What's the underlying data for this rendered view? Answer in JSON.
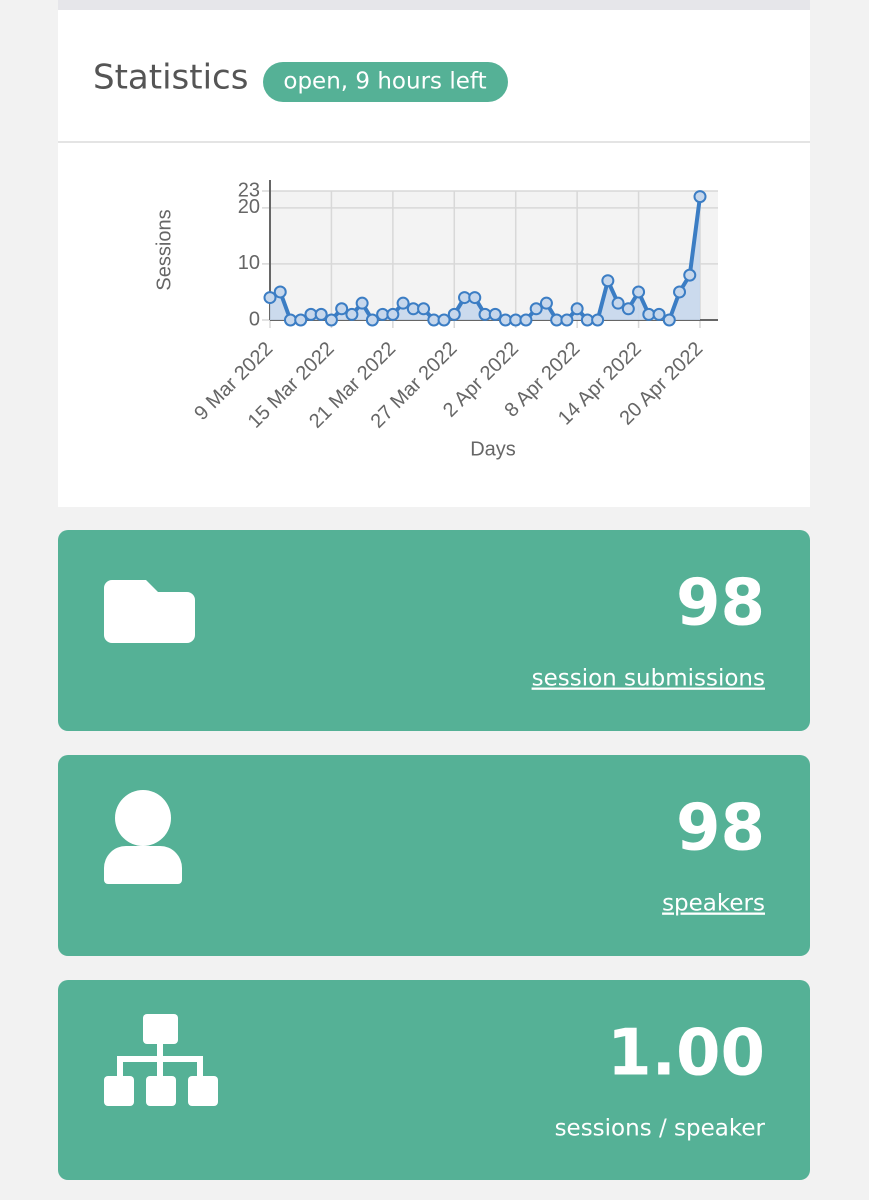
{
  "header": {
    "title": "Statistics",
    "badge": "open, 9 hours left"
  },
  "chart_data": {
    "type": "line",
    "y_label": "Sessions",
    "x_label": "Days",
    "categories": [
      "9 Mar 2022",
      null,
      null,
      null,
      null,
      null,
      "15 Mar 2022",
      null,
      null,
      null,
      null,
      null,
      "21 Mar 2022",
      null,
      null,
      null,
      null,
      null,
      "27 Mar 2022",
      null,
      null,
      null,
      null,
      null,
      "2 Apr 2022",
      null,
      null,
      null,
      null,
      null,
      "8 Apr 2022",
      null,
      null,
      null,
      null,
      null,
      "14 Apr 2022",
      null,
      null,
      null,
      null,
      null,
      "20 Apr 2022"
    ],
    "values": [
      4,
      5,
      0,
      0,
      1,
      1,
      0,
      2,
      1,
      3,
      0,
      1,
      1,
      3,
      2,
      2,
      0,
      0,
      1,
      4,
      4,
      1,
      1,
      0,
      0,
      0,
      2,
      3,
      0,
      0,
      2,
      0,
      0,
      7,
      3,
      2,
      5,
      1,
      1,
      0,
      5,
      8,
      22
    ],
    "color": "#3b7dc4",
    "ylim": [
      0,
      23
    ],
    "yticks": [
      0,
      10,
      20,
      23
    ],
    "grid": true
  },
  "cards": [
    {
      "value": "98",
      "label": "session submissions"
    },
    {
      "value": "98",
      "label": "speakers"
    },
    {
      "value": "1.00",
      "label": "sessions / speaker"
    }
  ]
}
